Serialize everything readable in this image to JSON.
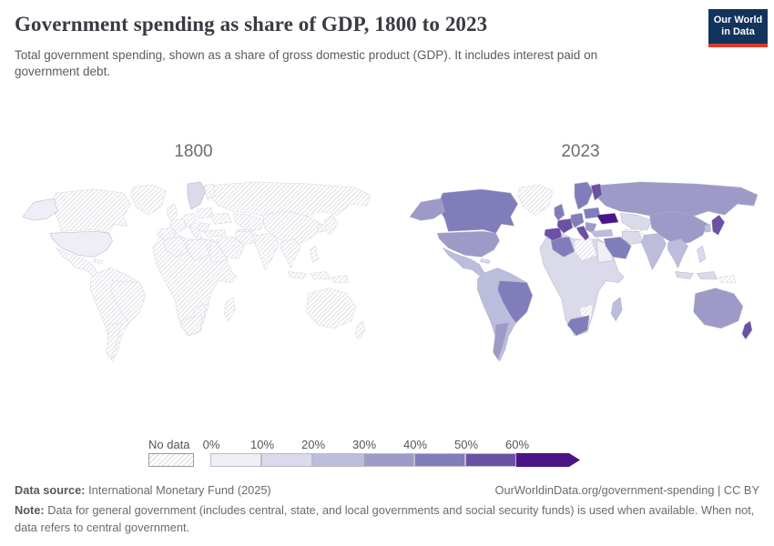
{
  "header": {
    "title": "Government spending as share of GDP, 1800 to 2023",
    "subtitle": "Total government spending, shown as a share of gross domestic product (GDP). It includes interest paid on government debt.",
    "logo": {
      "line1": "Our World",
      "line2": "in Data",
      "bg_color": "#12335b",
      "accent_color": "#dc3a2d"
    }
  },
  "panels": [
    {
      "label": "1800"
    },
    {
      "label": "2023"
    }
  ],
  "legend": {
    "no_data_label": "No data",
    "tick_labels": [
      "0%",
      "10%",
      "20%",
      "30%",
      "40%",
      "50%",
      "60%"
    ],
    "colors": [
      "#efedf5",
      "#dadaeb",
      "#bcbddc",
      "#9e9ac8",
      "#807dba",
      "#6a51a3",
      "#4a1486"
    ],
    "hatch_line_color": "#dcdce4",
    "border_color": "#bcbcc8"
  },
  "footer": {
    "datasource_label": "Data source:",
    "datasource_value": "International Monetary Fund (2025)",
    "attribution": "OurWorldinData.org/government-spending | CC BY",
    "note_label": "Note:",
    "note_value": "Data for general government (includes central, state, and local governments and social security funds) is used when available. When not, data refers to central government."
  },
  "chart_data": {
    "type": "heatmap",
    "subtype": "world-choropleth",
    "title": "Government spending as share of GDP, 1800 to 2023",
    "unit": "% of GDP",
    "bins": [
      0,
      10,
      20,
      30,
      40,
      50,
      60
    ],
    "bin_colors": [
      "#efedf5",
      "#dadaeb",
      "#bcbddc",
      "#9e9ac8",
      "#807dba",
      "#6a51a3",
      "#4a1486"
    ],
    "no_data_style": "diagonal-hatch",
    "legend_position": "bottom",
    "series": [
      {
        "name": "1800",
        "values": {
          "united-states": 2,
          "alaska": 2,
          "sweden-norway": 12
        },
        "all_other_regions": "no data"
      },
      {
        "name": "2023",
        "values": {
          "greenland": null,
          "canada": 44,
          "alaska": 36,
          "united-states": 36,
          "mexico-central-america": 27,
          "cuba": 15,
          "south-america-other": 28,
          "brazil": 46,
          "argentina": 35,
          "africa-other": 15,
          "algeria": 42,
          "libya": null,
          "egypt-sudan": 8,
          "south-africa": 42,
          "botswana-zimbabwe": null,
          "madagascar": 25,
          "russia": 37,
          "kazakhstan": 18,
          "turkmenistan-uzbekistan": null,
          "sweden-norway": 48,
          "finland": 56,
          "united-kingdom": 44,
          "spain-portugal": 52,
          "france": 57,
          "germany-central-europe": 48,
          "italy": 54,
          "poland-baltics": 47,
          "ukraine": 66,
          "balkans": 38,
          "turkey": 27,
          "saudi-arabia-middle-east": 42,
          "iran": 15,
          "india": 28,
          "china-mongolia": 33,
          "mainland-southeast-asia": 22,
          "indonesia-west": 17,
          "indonesia-east": 17,
          "philippines": 19,
          "japan": 54,
          "south-korea": 28,
          "papua-new-guinea": null,
          "australia": 38,
          "new-zealand": 55
        }
      }
    ]
  }
}
